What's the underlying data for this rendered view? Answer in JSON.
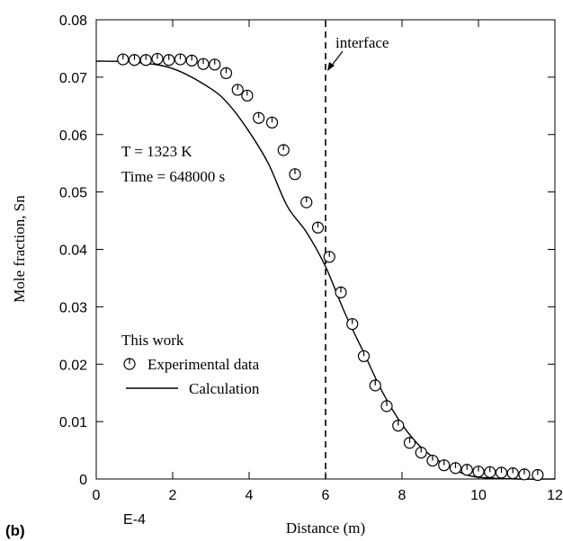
{
  "panel_label": "(b)",
  "x_multiplier": "E-4",
  "annotations": {
    "temperature": "T = 1323 K",
    "time": "Time = 648000 s",
    "interface": "interface"
  },
  "legend": {
    "title": "This work",
    "experimental": "Experimental data",
    "calculation": "Calculation"
  },
  "chart_data": {
    "type": "scatter",
    "title": "",
    "xlabel": "Distance (m)",
    "ylabel": "Mole fraction, Sn",
    "xlim": [
      0,
      12
    ],
    "ylim": [
      0,
      0.08
    ],
    "x_ticks": [
      0,
      2,
      4,
      6,
      8,
      10,
      12
    ],
    "y_ticks": [
      0,
      0.01,
      0.02,
      0.03,
      0.04,
      0.05,
      0.06,
      0.07,
      0.08
    ],
    "x_tick_labels": [
      "0",
      "2",
      "4",
      "6",
      "8",
      "10",
      "12"
    ],
    "y_tick_labels": [
      "0",
      "0.01",
      "0.02",
      "0.03",
      "0.04",
      "0.05",
      "0.06",
      "0.07",
      "0.08"
    ],
    "grid": false,
    "legend_position": "lower-left",
    "interface_x": 6.0,
    "series": [
      {
        "name": "Experimental data",
        "kind": "scatter",
        "marker": "open-circle-with-tick",
        "x": [
          0.7,
          1.0,
          1.3,
          1.6,
          1.9,
          2.2,
          2.5,
          2.8,
          3.1,
          3.4,
          3.7,
          3.95,
          4.25,
          4.6,
          4.9,
          5.2,
          5.5,
          5.8,
          6.1,
          6.4,
          6.7,
          7.0,
          7.3,
          7.6,
          7.9,
          8.2,
          8.5,
          8.8,
          9.1,
          9.4,
          9.7,
          10.0,
          10.3,
          10.6,
          10.9,
          11.2,
          11.55
        ],
        "y": [
          0.0731,
          0.073,
          0.073,
          0.0732,
          0.073,
          0.0731,
          0.0729,
          0.0723,
          0.0722,
          0.0707,
          0.0678,
          0.0668,
          0.0629,
          0.0621,
          0.0573,
          0.0531,
          0.0482,
          0.0438,
          0.0387,
          0.0325,
          0.027,
          0.0214,
          0.0163,
          0.0127,
          0.0093,
          0.0063,
          0.0046,
          0.0032,
          0.0024,
          0.0019,
          0.0016,
          0.0013,
          0.0012,
          0.0011,
          0.001,
          0.0008,
          0.0007
        ]
      },
      {
        "name": "Calculation",
        "kind": "line",
        "x": [
          0,
          1,
          2,
          3,
          3.5,
          4,
          4.5,
          5,
          5.5,
          6,
          6.5,
          7,
          7.5,
          8,
          8.5,
          9,
          9.5,
          10,
          11,
          12
        ],
        "y": [
          0.0728,
          0.0726,
          0.0715,
          0.068,
          0.065,
          0.0605,
          0.055,
          0.0475,
          0.043,
          0.037,
          0.029,
          0.022,
          0.015,
          0.0095,
          0.0055,
          0.003,
          0.0012,
          0.0003,
          0.0,
          0.0
        ]
      }
    ]
  }
}
